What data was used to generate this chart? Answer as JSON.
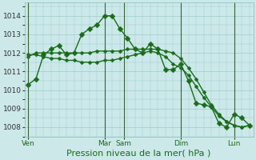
{
  "bg_color": "#cce8e8",
  "grid_color": "#99cccc",
  "line_color": "#1a6b1a",
  "xlabel": "Pression niveau de la mer( hPa )",
  "xlabel_fontsize": 8,
  "yticks": [
    1008,
    1009,
    1010,
    1011,
    1012,
    1013,
    1014
  ],
  "ylim": [
    1007.5,
    1014.7
  ],
  "xlim": [
    -0.5,
    29.5
  ],
  "xtick_labels": [
    "Ven",
    "Mar",
    "Sam",
    "Dim",
    "Lun"
  ],
  "xtick_positions": [
    0,
    10,
    12.5,
    20,
    27
  ],
  "vline_positions": [
    0,
    10,
    12.5,
    20,
    27
  ],
  "series": [
    [
      1010.3,
      1010.6,
      1011.9,
      1012.2,
      1012.4,
      1011.9,
      1012.0,
      1013.0,
      1013.3,
      1013.5,
      1014.0,
      1014.0,
      1013.3,
      1012.8,
      1012.2,
      1012.0,
      1012.5,
      1012.2,
      1011.1,
      1011.1,
      1011.4,
      1010.5,
      1009.3,
      1009.2,
      1009.1,
      1008.2,
      1008.0,
      1008.7,
      1008.5,
      1008.1
    ],
    [
      1011.8,
      1012.0,
      1012.0,
      1012.0,
      1012.0,
      1012.0,
      1012.0,
      1012.0,
      1012.0,
      1012.1,
      1012.1,
      1012.1,
      1012.1,
      1012.2,
      1012.2,
      1012.2,
      1012.2,
      1012.2,
      1012.1,
      1012.0,
      1011.7,
      1011.2,
      1010.6,
      1009.9,
      1009.2,
      1008.7,
      1008.3,
      1008.1,
      1008.0,
      1008.1
    ],
    [
      1011.9,
      1011.9,
      1011.8,
      1011.7,
      1011.7,
      1011.6,
      1011.6,
      1011.5,
      1011.5,
      1011.5,
      1011.6,
      1011.6,
      1011.7,
      1011.8,
      1011.9,
      1012.0,
      1012.1,
      1012.0,
      1011.8,
      1011.4,
      1011.2,
      1010.8,
      1010.2,
      1009.6,
      1009.1,
      1008.6,
      1008.3,
      1008.1,
      1008.0,
      1008.1
    ]
  ]
}
